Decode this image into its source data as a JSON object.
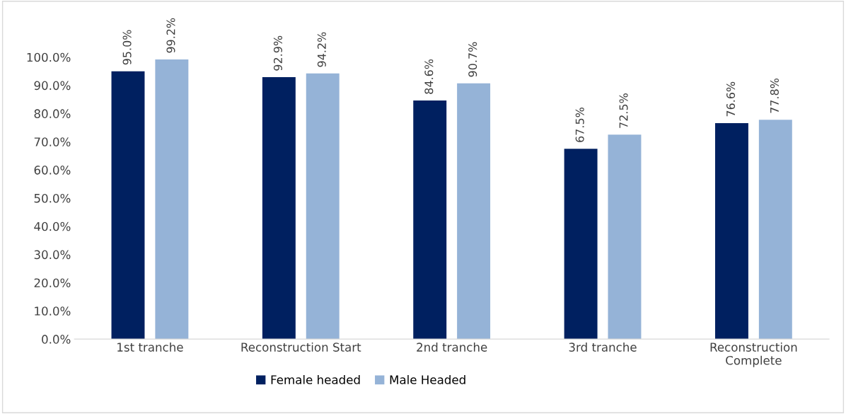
{
  "chart_data": {
    "type": "bar",
    "categories": [
      "1st tranche",
      "Reconstruction Start",
      "2nd tranche",
      "3rd tranche",
      "Reconstruction\nComplete"
    ],
    "series": [
      {
        "name": "Female headed",
        "color": "#002060",
        "values": [
          95.0,
          92.9,
          84.6,
          67.5,
          76.6
        ],
        "value_labels": [
          "95.0%",
          "92.9%",
          "84.6%",
          "67.5%",
          "76.6%"
        ]
      },
      {
        "name": "Male Headed",
        "color": "#95b3d7",
        "values": [
          99.2,
          94.2,
          90.7,
          72.5,
          77.8
        ],
        "value_labels": [
          "99.2%",
          "94.2%",
          "90.7%",
          "72.5%",
          "77.8%"
        ]
      }
    ],
    "ylim": [
      0,
      100
    ],
    "yticks": [
      {
        "value": 0,
        "label": "0.0%"
      },
      {
        "value": 10,
        "label": "10.0%"
      },
      {
        "value": 20,
        "label": "20.0%"
      },
      {
        "value": 30,
        "label": "30.0%"
      },
      {
        "value": 40,
        "label": "40.0%"
      },
      {
        "value": 50,
        "label": "50.0%"
      },
      {
        "value": 60,
        "label": "60.0%"
      },
      {
        "value": 70,
        "label": "70.0%"
      },
      {
        "value": 80,
        "label": "80.0%"
      },
      {
        "value": 90,
        "label": "90.0%"
      },
      {
        "value": 100,
        "label": "100.0%"
      }
    ],
    "grid": false,
    "legend": "bottom"
  }
}
